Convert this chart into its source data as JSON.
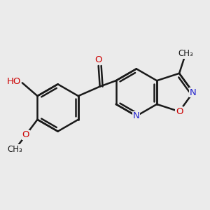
{
  "bg_color": "#ebebeb",
  "bond_color": "#1a1a1a",
  "lw": 1.8,
  "atom_colors": {
    "O_carbonyl": "#cc0000",
    "O_hydroxyl": "#cc0000",
    "O_methoxy": "#cc0000",
    "O_ring": "#cc0000",
    "N_pyridine": "#2222cc",
    "N_isoxazole": "#2222cc",
    "H_hydroxyl": "#4a9090",
    "C": "#1a1a1a"
  },
  "xlim": [
    0.0,
    7.5
  ],
  "ylim": [
    0.5,
    5.5
  ],
  "figsize": [
    3.0,
    3.0
  ],
  "dpi": 100,
  "label_fontsize": 9.5,
  "methyl_fontsize": 8.5
}
